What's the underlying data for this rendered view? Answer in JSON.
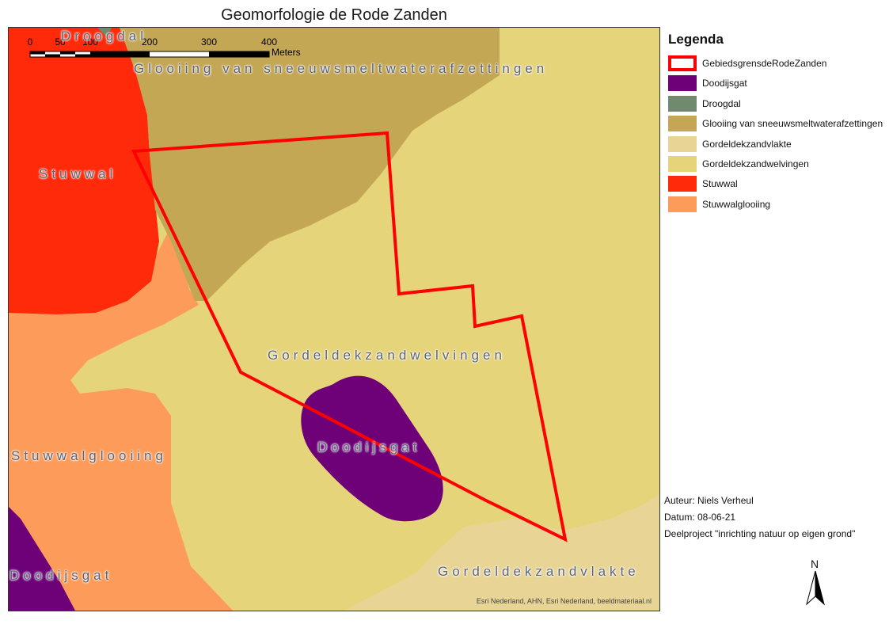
{
  "title": "Geomorfologie de Rode Zanden",
  "colors": {
    "gordeldekzandwelvingen": "#e6d47a",
    "gordeldekzandvlakte": "#e8d596",
    "glooiing": "#c4a755",
    "stuwwal": "#ff2a0a",
    "stuwwalglooiing": "#fd9c5a",
    "doodijsgat": "#6e0078",
    "droogdal": "#6f8a6e",
    "boundary": "#ff0000"
  },
  "map_labels": {
    "droogdal": "Droogdal",
    "glooiing": "Glooiing van sneeuwsmeltwaterafzettingen",
    "stuwwal": "Stuwwal",
    "welvingen": "Gordeldekzandwelvingen",
    "stuwwalglooiing": "Stuwwalglooiing",
    "doodijsgat_center": "Doodijsgat",
    "doodijsgat_left": "Doodijsgat",
    "vlakte": "Gordeldekzandvlakte"
  },
  "scale_bar": {
    "ticks": [
      "0",
      "50",
      "100",
      "200",
      "300",
      "400"
    ],
    "unit": "Meters"
  },
  "credits": "Esri Nederland, AHN, Esri Nederland, beeldmateriaal.nl",
  "legend": {
    "title": "Legenda",
    "items": [
      {
        "label": "GebiedsgrensdeRodeZanden",
        "fill": "#ffffff",
        "border": "#ff0000"
      },
      {
        "label": "Doodijsgat",
        "fill": "#6e0078"
      },
      {
        "label": "Droogdal",
        "fill": "#6f8a6e"
      },
      {
        "label": "Glooiing van sneeuwsmeltwaterafzettingen",
        "fill": "#c4a755"
      },
      {
        "label": "Gordeldekzandvlakte",
        "fill": "#e8d596"
      },
      {
        "label": "Gordeldekzandwelvingen",
        "fill": "#e6d47a"
      },
      {
        "label": "Stuwwal",
        "fill": "#ff2a0a"
      },
      {
        "label": "Stuwwalglooiing",
        "fill": "#fd9c5a"
      }
    ]
  },
  "info": {
    "author": "Auteur: Niels Verheul",
    "date": "Datum: 08-06-21",
    "project": "Deelproject \"inrichting natuur op eigen grond\""
  },
  "north_label": "N"
}
